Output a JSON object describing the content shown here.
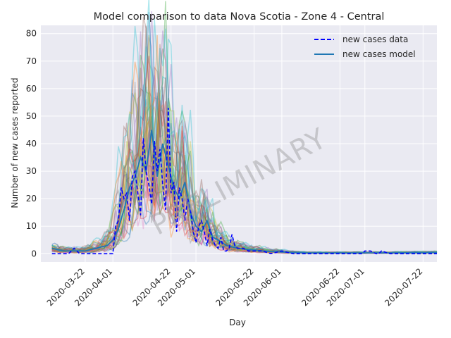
{
  "chart_data": {
    "type": "line",
    "title": "Model comparison to data Nova Scotia - Zone 4 - Central",
    "xlabel": "Day",
    "ylabel": "Number of new cases reported",
    "ylim": [
      -3,
      83
    ],
    "y_ticks": [
      0,
      10,
      20,
      30,
      40,
      50,
      60,
      70,
      80
    ],
    "x_start": "2020-03-06",
    "x_end": "2020-07-27",
    "x_ticks": [
      "2020-03-22",
      "2020-04-01",
      "2020-04-22",
      "2020-05-01",
      "2020-05-22",
      "2020-06-01",
      "2020-06-22",
      "2020-07-01",
      "2020-07-22"
    ],
    "grid": true,
    "legend_position": "top-right",
    "watermark": "PRELIMINARY",
    "series": [
      {
        "name": "new cases data",
        "style": "dashed",
        "color": "#0000ff",
        "x": [
          "2020-03-10",
          "2020-03-12",
          "2020-03-14",
          "2020-03-16",
          "2020-03-18",
          "2020-03-19",
          "2020-03-20",
          "2020-03-22",
          "2020-03-24",
          "2020-03-26",
          "2020-03-28",
          "2020-03-30",
          "2020-04-01",
          "2020-04-02",
          "2020-04-03",
          "2020-04-04",
          "2020-04-05",
          "2020-04-06",
          "2020-04-07",
          "2020-04-08",
          "2020-04-09",
          "2020-04-10",
          "2020-04-11",
          "2020-04-12",
          "2020-04-13",
          "2020-04-14",
          "2020-04-15",
          "2020-04-16",
          "2020-04-17",
          "2020-04-18",
          "2020-04-19",
          "2020-04-20",
          "2020-04-21",
          "2020-04-22",
          "2020-04-23",
          "2020-04-24",
          "2020-04-25",
          "2020-04-26",
          "2020-04-27",
          "2020-04-28",
          "2020-04-29",
          "2020-04-30",
          "2020-05-01",
          "2020-05-02",
          "2020-05-03",
          "2020-05-04",
          "2020-05-05",
          "2020-05-06",
          "2020-05-07",
          "2020-05-08",
          "2020-05-09",
          "2020-05-10",
          "2020-05-11",
          "2020-05-12",
          "2020-05-13",
          "2020-05-14",
          "2020-05-15",
          "2020-05-16",
          "2020-05-17",
          "2020-05-18",
          "2020-05-20",
          "2020-05-22",
          "2020-05-25",
          "2020-05-28",
          "2020-06-01",
          "2020-06-05",
          "2020-06-10",
          "2020-06-15",
          "2020-06-20",
          "2020-06-25",
          "2020-06-30",
          "2020-07-01",
          "2020-07-03",
          "2020-07-05",
          "2020-07-06",
          "2020-07-07",
          "2020-07-10",
          "2020-07-15",
          "2020-07-20",
          "2020-07-27"
        ],
        "values": [
          0,
          0,
          0,
          0,
          2,
          1,
          0,
          0,
          0,
          0,
          0,
          0,
          0,
          10,
          12,
          24,
          20,
          22,
          12,
          28,
          30,
          22,
          14,
          42,
          30,
          25,
          18,
          41,
          30,
          38,
          25,
          16,
          53,
          22,
          26,
          8,
          24,
          20,
          12,
          20,
          16,
          8,
          4,
          10,
          12,
          8,
          3,
          9,
          5,
          3,
          2,
          6,
          1,
          1,
          2,
          7,
          3,
          2,
          2,
          2,
          1,
          1,
          1,
          0,
          1,
          0,
          0,
          0,
          0,
          0,
          0,
          1,
          1,
          0,
          0,
          1,
          0,
          0,
          0,
          0
        ]
      },
      {
        "name": "new cases model",
        "style": "solid",
        "color": "#1f77b4",
        "x": [
          "2020-03-10",
          "2020-03-14",
          "2020-03-18",
          "2020-03-22",
          "2020-03-26",
          "2020-03-30",
          "2020-04-01",
          "2020-04-03",
          "2020-04-05",
          "2020-04-07",
          "2020-04-09",
          "2020-04-11",
          "2020-04-13",
          "2020-04-15",
          "2020-04-17",
          "2020-04-19",
          "2020-04-21",
          "2020-04-23",
          "2020-04-25",
          "2020-04-27",
          "2020-04-29",
          "2020-05-01",
          "2020-05-03",
          "2020-05-05",
          "2020-05-07",
          "2020-05-09",
          "2020-05-12",
          "2020-05-16",
          "2020-05-20",
          "2020-05-25",
          "2020-06-01",
          "2020-06-10",
          "2020-06-20",
          "2020-07-01",
          "2020-07-10",
          "2020-07-20",
          "2020-07-27"
        ],
        "values": [
          2,
          1,
          1,
          1,
          2,
          3,
          5,
          9,
          16,
          24,
          28,
          35,
          30,
          45,
          28,
          40,
          32,
          24,
          20,
          26,
          15,
          10,
          8,
          12,
          6,
          5,
          3,
          2,
          1.5,
          1,
          0.6,
          0.3,
          0.3,
          0.3,
          0.3,
          0.4,
          0.4
        ]
      }
    ]
  }
}
